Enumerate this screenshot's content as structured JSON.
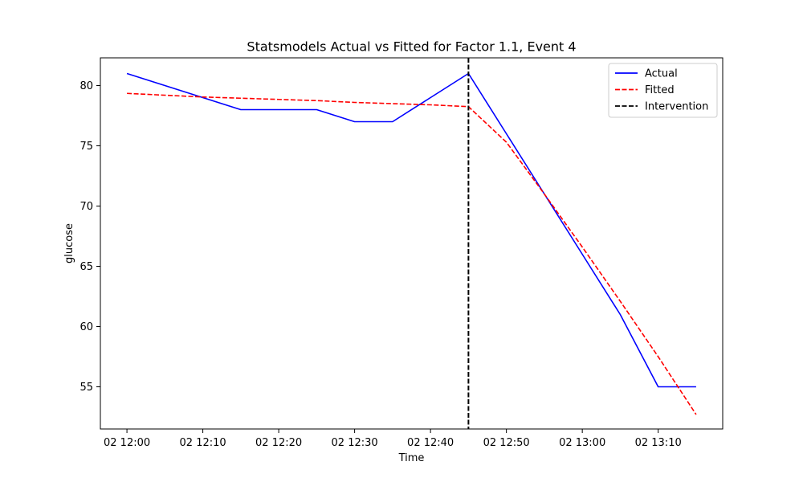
{
  "chart_data": {
    "type": "line",
    "title": "Statsmodels Actual vs Fitted for Factor 1.1, Event 4",
    "xlabel": "Time",
    "ylabel": "glucose",
    "x_tick_labels": [
      "02 12:00",
      "02 12:10",
      "02 12:20",
      "02 12:30",
      "02 12:40",
      "02 12:50",
      "02 13:00",
      "02 13:10"
    ],
    "x_tick_values": [
      "12:00",
      "12:10",
      "12:20",
      "12:30",
      "12:40",
      "12:50",
      "13:00",
      "13:10"
    ],
    "xlim": [
      "11:56.5",
      "13:18.5"
    ],
    "y_tick_labels": [
      "55",
      "60",
      "65",
      "70",
      "75",
      "80"
    ],
    "y_tick_values": [
      55,
      60,
      65,
      70,
      75,
      80
    ],
    "ylim": [
      51.5,
      82.3
    ],
    "x": [
      "12:00",
      "12:05",
      "12:10",
      "12:15",
      "12:20",
      "12:25",
      "12:30",
      "12:35",
      "12:40",
      "12:45",
      "12:50",
      "12:55",
      "13:00",
      "13:05",
      "13:10",
      "13:15"
    ],
    "series": [
      {
        "name": "Actual",
        "color": "#0000ff",
        "style": "solid",
        "values": [
          81,
          80,
          79,
          78,
          78,
          78,
          77,
          77,
          79,
          81,
          76,
          71,
          66,
          61,
          55,
          55
        ]
      },
      {
        "name": "Fitted",
        "color": "#ff0000",
        "style": "dashed",
        "values": [
          79.35,
          79.2,
          79.05,
          78.95,
          78.85,
          78.75,
          78.6,
          78.5,
          78.4,
          78.25,
          75.3,
          71.0,
          66.6,
          62.1,
          57.5,
          52.7
        ]
      }
    ],
    "intervention": {
      "name": "Intervention",
      "x": "12:45",
      "color": "#000000",
      "style": "dashed"
    },
    "legend_position": "top-right",
    "grid": false
  }
}
